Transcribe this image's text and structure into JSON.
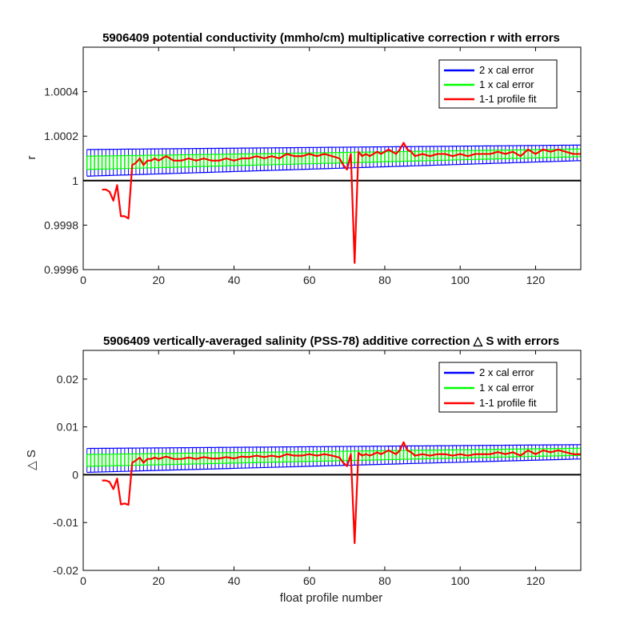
{
  "chart_data": [
    {
      "type": "line",
      "title": "5906409 potential conductivity (mmho/cm) multiplicative correction r with errors",
      "xlabel": "",
      "ylabel": "r",
      "xlim": [
        0,
        132
      ],
      "ylim": [
        0.9996,
        1.0006
      ],
      "xticks": [
        0,
        20,
        40,
        60,
        80,
        100,
        120
      ],
      "xtick_labels": [
        "0",
        "20",
        "40",
        "60",
        "80",
        "100",
        "120"
      ],
      "yticks": [
        0.9996,
        0.9998,
        1.0,
        1.0002,
        1.0004
      ],
      "ytick_labels": [
        "0.9996",
        "0.9998",
        "1",
        "1.0002",
        "1.0004"
      ],
      "baseline": 1.0,
      "grid": false,
      "legend_position": "top-right",
      "legend": [
        "2 x cal error",
        "1 x cal error",
        "1-1 profile fit"
      ],
      "colors": {
        "two_x": "#0000ff",
        "one_x": "#00ff00",
        "profile_fit": "#ff0000",
        "baseline": "#000000"
      },
      "calibration": {
        "x_range": [
          1,
          132
        ],
        "center_start": 1.00008,
        "center_end": 1.000125,
        "error_2x_start": 6e-05,
        "error_2x_end": 3.5e-05,
        "error_1x_start": 3e-05,
        "error_1x_end": 1.75e-05
      },
      "series": [
        {
          "name": "1-1 profile fit",
          "x": [
            5,
            6,
            7,
            8,
            9,
            10,
            11,
            12,
            13,
            14,
            15,
            16,
            17,
            18,
            19,
            20,
            22,
            24,
            26,
            28,
            30,
            32,
            34,
            36,
            38,
            40,
            42,
            44,
            46,
            48,
            50,
            52,
            54,
            56,
            58,
            60,
            62,
            64,
            66,
            68,
            69,
            70,
            71,
            72,
            73,
            74,
            75,
            76,
            77,
            78,
            79,
            80,
            81,
            82,
            83,
            84,
            85,
            86,
            87,
            88,
            90,
            92,
            94,
            96,
            98,
            100,
            102,
            104,
            106,
            108,
            110,
            112,
            114,
            116,
            118,
            120,
            122,
            124,
            126,
            128,
            130,
            132
          ],
          "y": [
            0.99996,
            0.99996,
            0.99995,
            0.99991,
            0.99998,
            0.99984,
            0.99984,
            0.99983,
            1.00007,
            1.00008,
            1.0001,
            1.00007,
            1.00009,
            1.00009,
            1.0001,
            1.00009,
            1.00011,
            1.00009,
            1.00009,
            1.0001,
            1.00009,
            1.0001,
            1.00009,
            1.00009,
            1.0001,
            1.00009,
            1.0001,
            1.0001,
            1.00011,
            1.0001,
            1.00011,
            1.0001,
            1.00012,
            1.00011,
            1.00011,
            1.00012,
            1.00011,
            1.00012,
            1.00011,
            1.0001,
            1.00007,
            1.00005,
            1.00012,
            0.99963,
            1.00013,
            1.00011,
            1.00012,
            1.00011,
            1.00012,
            1.00013,
            1.00012,
            1.00013,
            1.00014,
            1.00013,
            1.00012,
            1.00014,
            1.00017,
            1.00014,
            1.00013,
            1.00011,
            1.00012,
            1.00011,
            1.00012,
            1.00012,
            1.00011,
            1.00012,
            1.00011,
            1.00012,
            1.00012,
            1.00012,
            1.00013,
            1.00012,
            1.00013,
            1.00011,
            1.00014,
            1.00012,
            1.00014,
            1.00013,
            1.00014,
            1.00013,
            1.00012,
            1.00012
          ]
        }
      ]
    },
    {
      "type": "line",
      "title": "5906409 vertically-averaged salinity (PSS-78) additive correction △ S with errors",
      "xlabel": "float profile number",
      "ylabel": "△ S",
      "xlim": [
        0,
        132
      ],
      "ylim": [
        -0.02,
        0.026
      ],
      "xticks": [
        0,
        20,
        40,
        60,
        80,
        100,
        120
      ],
      "xtick_labels": [
        "0",
        "20",
        "40",
        "60",
        "80",
        "100",
        "120"
      ],
      "yticks": [
        -0.02,
        -0.01,
        0,
        0.01,
        0.02
      ],
      "ytick_labels": [
        "-0.02",
        "-0.01",
        "0",
        "0.01",
        "0.02"
      ],
      "baseline": 0,
      "grid": false,
      "legend_position": "top-right",
      "legend": [
        "2 x cal error",
        "1 x cal error",
        "1-1 profile fit"
      ],
      "colors": {
        "two_x": "#0000ff",
        "one_x": "#00ff00",
        "profile_fit": "#ff0000",
        "baseline": "#000000"
      },
      "calibration": {
        "x_range": [
          1,
          132
        ],
        "center_start": 0.003,
        "center_end": 0.0048,
        "error_2x_start": 0.0025,
        "error_2x_end": 0.0015,
        "error_1x_start": 0.00125,
        "error_1x_end": 0.00075
      },
      "series": [
        {
          "name": "1-1 profile fit",
          "x": [
            5,
            6,
            7,
            8,
            9,
            10,
            11,
            12,
            13,
            14,
            15,
            16,
            17,
            18,
            19,
            20,
            22,
            24,
            26,
            28,
            30,
            32,
            34,
            36,
            38,
            40,
            42,
            44,
            46,
            48,
            50,
            52,
            54,
            56,
            58,
            60,
            62,
            64,
            66,
            68,
            69,
            70,
            71,
            72,
            73,
            74,
            75,
            76,
            77,
            78,
            79,
            80,
            81,
            82,
            83,
            84,
            85,
            86,
            87,
            88,
            90,
            92,
            94,
            96,
            98,
            100,
            102,
            104,
            106,
            108,
            110,
            112,
            114,
            116,
            118,
            120,
            122,
            124,
            126,
            128,
            130,
            132
          ],
          "y": [
            -0.0012,
            -0.0012,
            -0.0015,
            -0.003,
            -0.0008,
            -0.0062,
            -0.006,
            -0.0063,
            0.0025,
            0.003,
            0.0036,
            0.0025,
            0.0033,
            0.0033,
            0.0036,
            0.0033,
            0.0038,
            0.0033,
            0.0033,
            0.0036,
            0.0033,
            0.0037,
            0.0034,
            0.0034,
            0.0037,
            0.0034,
            0.0038,
            0.0037,
            0.004,
            0.0037,
            0.004,
            0.0037,
            0.0043,
            0.004,
            0.004,
            0.0043,
            0.004,
            0.0043,
            0.004,
            0.0036,
            0.0025,
            0.0018,
            0.0043,
            -0.0143,
            0.0046,
            0.004,
            0.0043,
            0.004,
            0.0043,
            0.0047,
            0.0043,
            0.0047,
            0.0051,
            0.0047,
            0.0043,
            0.0051,
            0.0068,
            0.0051,
            0.0047,
            0.004,
            0.0043,
            0.004,
            0.0043,
            0.0043,
            0.004,
            0.0043,
            0.004,
            0.0043,
            0.0043,
            0.0043,
            0.0047,
            0.0043,
            0.0047,
            0.004,
            0.0051,
            0.0043,
            0.0051,
            0.0047,
            0.0051,
            0.0047,
            0.0043,
            0.0043
          ]
        }
      ]
    }
  ]
}
